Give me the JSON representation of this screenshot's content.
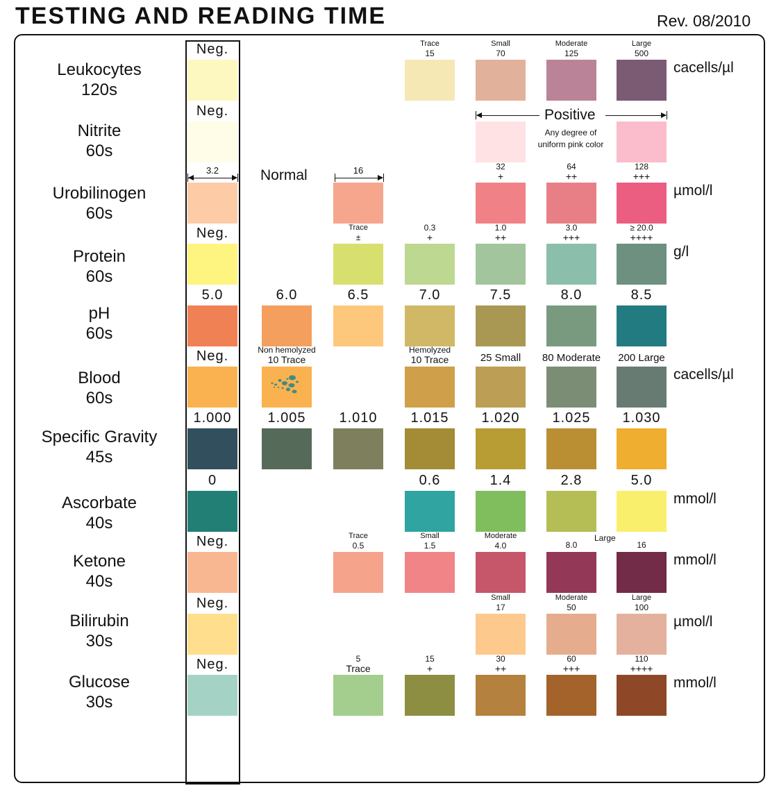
{
  "header": {
    "title": "TESTING AND READING TIME",
    "revision": "Rev. 08/2010"
  },
  "chart_data": {
    "type": "table",
    "rows": [
      {
        "name": "Leukocytes",
        "time": "120s",
        "unit": "cacells/µl",
        "cells": [
          {
            "col": 0,
            "color": "#FDF8BF",
            "labels": [
              "Neg."
            ],
            "style": "big"
          },
          {
            "col": 3,
            "color": "#F5E8B5",
            "labels": [
              "Trace",
              "15"
            ],
            "style": "small2"
          },
          {
            "col": 4,
            "color": "#E2B19C",
            "labels": [
              "Small",
              "70"
            ],
            "style": "small2"
          },
          {
            "col": 5,
            "color": "#BB8398",
            "labels": [
              "Moderate",
              "125"
            ],
            "style": "small2"
          },
          {
            "col": 6,
            "color": "#7B5A74",
            "labels": [
              "Large",
              "500"
            ],
            "style": "small2"
          }
        ]
      },
      {
        "name": "Nitrite",
        "time": "60s",
        "unit": "",
        "cells": [
          {
            "col": 0,
            "color": "#FFFDE8",
            "labels": [
              "Neg."
            ],
            "style": "big"
          },
          {
            "col": 4,
            "color": "#FEE2E4",
            "labels": [],
            "style": "none"
          },
          {
            "col": 6,
            "color": "#FBBCCB",
            "labels": [],
            "style": "none"
          }
        ]
      },
      {
        "name": "Urobilinogen",
        "time": "60s",
        "unit": "µmol/l",
        "cells": [
          {
            "col": 0,
            "color": "#FDCCA6",
            "labels": [
              "3.2"
            ],
            "style": "medium"
          },
          {
            "col": 2,
            "color": "#F6A68C",
            "labels": [
              "16"
            ],
            "style": "medium"
          },
          {
            "col": 4,
            "color": "#F08287",
            "labels": [
              "32",
              "+"
            ],
            "style": "small2b"
          },
          {
            "col": 5,
            "color": "#E87F86",
            "labels": [
              "64",
              "++"
            ],
            "style": "small2b"
          },
          {
            "col": 6,
            "color": "#EC5D82",
            "labels": [
              "128",
              "+++"
            ],
            "style": "small2b"
          }
        ]
      },
      {
        "name": "Protein",
        "time": "60s",
        "unit": "g/l",
        "cells": [
          {
            "col": 0,
            "color": "#FEF580",
            "labels": [
              "Neg."
            ],
            "style": "big"
          },
          {
            "col": 2,
            "color": "#D7E06E",
            "labels": [
              "Trace",
              "±"
            ],
            "style": "small2"
          },
          {
            "col": 3,
            "color": "#BCD891",
            "labels": [
              "0.3",
              "+"
            ],
            "style": "small2b"
          },
          {
            "col": 4,
            "color": "#A3C59D",
            "labels": [
              "1.0",
              "++"
            ],
            "style": "small2b"
          },
          {
            "col": 5,
            "color": "#8BBFAC",
            "labels": [
              "3.0",
              "+++"
            ],
            "style": "small2b"
          },
          {
            "col": 6,
            "color": "#6D9081",
            "labels": [
              "≥ 20.0",
              "++++"
            ],
            "style": "small2b"
          }
        ]
      },
      {
        "name": "pH",
        "time": "60s",
        "unit": "",
        "cells": [
          {
            "col": 0,
            "color": "#F08155",
            "labels": [
              "5.0"
            ],
            "style": "big"
          },
          {
            "col": 1,
            "color": "#F59F5E",
            "labels": [
              "6.0"
            ],
            "style": "big"
          },
          {
            "col": 2,
            "color": "#FDC87B",
            "labels": [
              "6.5"
            ],
            "style": "big"
          },
          {
            "col": 3,
            "color": "#D0B866",
            "labels": [
              "7.0"
            ],
            "style": "big"
          },
          {
            "col": 4,
            "color": "#A89853",
            "labels": [
              "7.5"
            ],
            "style": "big"
          },
          {
            "col": 5,
            "color": "#7A9A80",
            "labels": [
              "8.0"
            ],
            "style": "big"
          },
          {
            "col": 6,
            "color": "#217B80",
            "labels": [
              "8.5"
            ],
            "style": "big"
          }
        ]
      },
      {
        "name": "Blood",
        "time": "60s",
        "unit": "cacells/µl",
        "cells": [
          {
            "col": 0,
            "color": "#F9B24F",
            "labels": [
              "Neg."
            ],
            "style": "big"
          },
          {
            "col": 1,
            "color": "#F9B24F",
            "labels": [
              "Non hemolyzed",
              "10 Trace"
            ],
            "style": "two"
          },
          {
            "col": 3,
            "color": "#CF9F4A",
            "labels": [
              "Hemolyzed",
              "10 Trace"
            ],
            "style": "two"
          },
          {
            "col": 4,
            "color": "#BC9E55",
            "labels": [
              "25 Small"
            ],
            "style": "mid1"
          },
          {
            "col": 5,
            "color": "#7C8D76",
            "labels": [
              "80 Moderate"
            ],
            "style": "mid1"
          },
          {
            "col": 6,
            "color": "#677B72",
            "labels": [
              "200 Large"
            ],
            "style": "mid1"
          }
        ]
      },
      {
        "name": "Specific Gravity",
        "time": "45s",
        "unit": "",
        "cells": [
          {
            "col": 0,
            "color": "#324F5D",
            "labels": [
              "1.000"
            ],
            "style": "big"
          },
          {
            "col": 1,
            "color": "#566A59",
            "labels": [
              "1.005"
            ],
            "style": "big"
          },
          {
            "col": 2,
            "color": "#7E805D",
            "labels": [
              "1.010"
            ],
            "style": "big"
          },
          {
            "col": 3,
            "color": "#A48B36",
            "labels": [
              "1.015"
            ],
            "style": "big"
          },
          {
            "col": 4,
            "color": "#B89C34",
            "labels": [
              "1.020"
            ],
            "style": "big"
          },
          {
            "col": 5,
            "color": "#BA8F34",
            "labels": [
              "1.025"
            ],
            "style": "big"
          },
          {
            "col": 6,
            "color": "#EFAE30",
            "labels": [
              "1.030"
            ],
            "style": "big"
          }
        ]
      },
      {
        "name": "Ascorbate",
        "time": "40s",
        "unit": "mmol/l",
        "cells": [
          {
            "col": 0,
            "color": "#227F76",
            "labels": [
              "0"
            ],
            "style": "big"
          },
          {
            "col": 3,
            "color": "#2FA4A0",
            "labels": [
              "0.6"
            ],
            "style": "big"
          },
          {
            "col": 4,
            "color": "#80BD5D",
            "labels": [
              "1.4"
            ],
            "style": "big"
          },
          {
            "col": 5,
            "color": "#B5BD55",
            "labels": [
              "2.8"
            ],
            "style": "big"
          },
          {
            "col": 6,
            "color": "#F9EF6D",
            "labels": [
              "5.0"
            ],
            "style": "big"
          }
        ]
      },
      {
        "name": "Ketone",
        "time": "40s",
        "unit": "mmol/l",
        "cells": [
          {
            "col": 0,
            "color": "#F9B791",
            "labels": [
              "Neg."
            ],
            "style": "big"
          },
          {
            "col": 2,
            "color": "#F5A48B",
            "labels": [
              "Trace",
              "0.5"
            ],
            "style": "small2"
          },
          {
            "col": 3,
            "color": "#F08487",
            "labels": [
              "Small",
              "1.5"
            ],
            "style": "small2"
          },
          {
            "col": 4,
            "color": "#C6566A",
            "labels": [
              "Moderate",
              "4.0"
            ],
            "style": "small2"
          },
          {
            "col": 5,
            "color": "#943858",
            "labels": [
              "8.0"
            ],
            "style": "small1"
          },
          {
            "col": 6,
            "color": "#722C47",
            "labels": [
              "16"
            ],
            "style": "small1"
          }
        ]
      },
      {
        "name": "Bilirubin",
        "time": "30s",
        "unit": "µmol/l",
        "cells": [
          {
            "col": 0,
            "color": "#FFDE8E",
            "labels": [
              "Neg."
            ],
            "style": "big"
          },
          {
            "col": 4,
            "color": "#FEC98C",
            "labels": [
              "Small",
              "17"
            ],
            "style": "small2"
          },
          {
            "col": 5,
            "color": "#E5AD8E",
            "labels": [
              "Moderate",
              "50"
            ],
            "style": "small2"
          },
          {
            "col": 6,
            "color": "#E3B19D",
            "labels": [
              "Large",
              "100"
            ],
            "style": "small2"
          }
        ]
      },
      {
        "name": "Glucose",
        "time": "30s",
        "unit": "mmol/l",
        "cells": [
          {
            "col": 0,
            "color": "#A4D3C5",
            "labels": [
              "Neg."
            ],
            "style": "big"
          },
          {
            "col": 2,
            "color": "#A4CE8E",
            "labels": [
              "5",
              "Trace"
            ],
            "style": "small2b"
          },
          {
            "col": 3,
            "color": "#8E8E42",
            "labels": [
              "15",
              "+"
            ],
            "style": "small2b"
          },
          {
            "col": 4,
            "color": "#B5813F",
            "labels": [
              "30",
              "++"
            ],
            "style": "small2b"
          },
          {
            "col": 5,
            "color": "#A3632B",
            "labels": [
              "60",
              "+++"
            ],
            "style": "small2b"
          },
          {
            "col": 6,
            "color": "#8E4828",
            "labels": [
              "110",
              "++++"
            ],
            "style": "small2b"
          }
        ]
      }
    ],
    "annotations": {
      "urobilinogen_normal": "Normal",
      "nitrite_positive": "Positive",
      "nitrite_note_1": "Any degree of",
      "nitrite_note_2": "uniform pink color",
      "ketone_large": "Large"
    }
  }
}
